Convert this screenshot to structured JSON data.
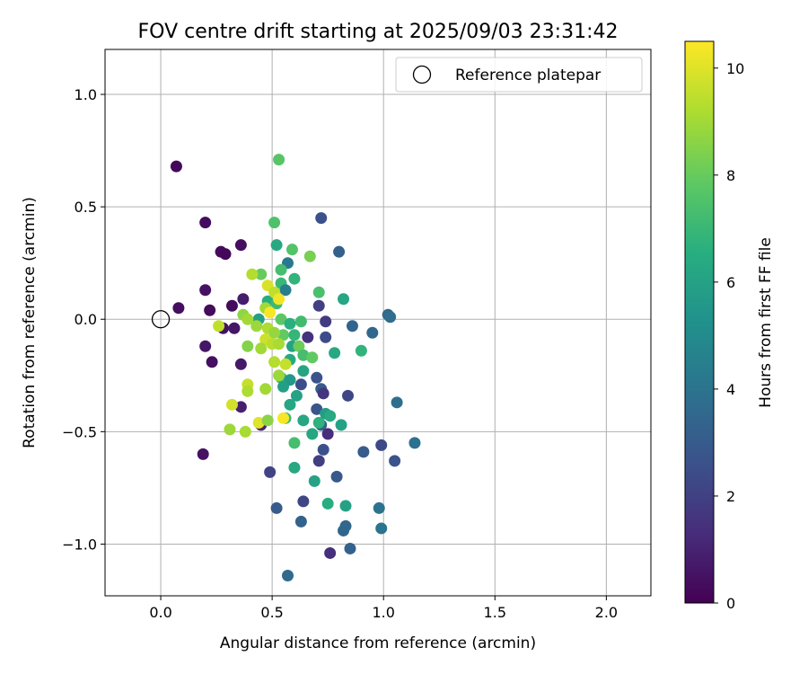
{
  "chart_data": {
    "type": "scatter",
    "title": "FOV centre drift starting at 2025/09/03 23:31:42",
    "xlabel": "Angular distance from reference (arcmin)",
    "ylabel": "Rotation from reference (arcmin)",
    "xlim": [
      -0.25,
      2.2
    ],
    "ylim": [
      -1.23,
      1.2
    ],
    "xticks": [
      0.0,
      0.5,
      1.0,
      1.5,
      2.0
    ],
    "xtick_labels": [
      "0.0",
      "0.5",
      "1.0",
      "1.5",
      "2.0"
    ],
    "yticks": [
      -1.0,
      -0.5,
      0.0,
      0.5,
      1.0
    ],
    "ytick_labels": [
      "−1.0",
      "−0.5",
      "0.0",
      "0.5",
      "1.0"
    ],
    "grid": true,
    "legend": {
      "location": "top-right",
      "entries": [
        "Reference platepar"
      ]
    },
    "reference_point": {
      "x": 0.0,
      "y": 0.0
    },
    "colorbar": {
      "label": "Hours from first FF file",
      "min": 0,
      "max": 10.5,
      "ticks": [
        0,
        2,
        4,
        6,
        8,
        10
      ],
      "tick_labels": [
        "0",
        "2",
        "4",
        "6",
        "8",
        "10"
      ],
      "colormap": "viridis"
    },
    "points": [
      {
        "x": 0.07,
        "y": 0.68,
        "h": 0.2
      },
      {
        "x": 0.2,
        "y": 0.43,
        "h": 0.3
      },
      {
        "x": 0.08,
        "y": 0.05,
        "h": 0.4
      },
      {
        "x": 0.2,
        "y": 0.13,
        "h": 0.5
      },
      {
        "x": 0.22,
        "y": 0.04,
        "h": 0.3
      },
      {
        "x": 0.2,
        "y": -0.12,
        "h": 0.6
      },
      {
        "x": 0.23,
        "y": -0.19,
        "h": 0.4
      },
      {
        "x": 0.19,
        "y": -0.6,
        "h": 0.5
      },
      {
        "x": 0.27,
        "y": 0.3,
        "h": 0.3
      },
      {
        "x": 0.29,
        "y": 0.29,
        "h": 0.2
      },
      {
        "x": 0.36,
        "y": 0.33,
        "h": 0.4
      },
      {
        "x": 0.37,
        "y": 0.09,
        "h": 0.8
      },
      {
        "x": 0.32,
        "y": 0.06,
        "h": 0.3
      },
      {
        "x": 0.28,
        "y": -0.04,
        "h": 0.5
      },
      {
        "x": 0.33,
        "y": -0.04,
        "h": 0.6
      },
      {
        "x": 0.36,
        "y": -0.2,
        "h": 0.7
      },
      {
        "x": 0.36,
        "y": -0.39,
        "h": 0.9
      },
      {
        "x": 0.45,
        "y": -0.47,
        "h": 1.0
      },
      {
        "x": 0.72,
        "y": 0.45,
        "h": 2.6
      },
      {
        "x": 0.8,
        "y": 0.3,
        "h": 3.2
      },
      {
        "x": 0.71,
        "y": 0.06,
        "h": 2.0
      },
      {
        "x": 0.74,
        "y": -0.01,
        "h": 1.8
      },
      {
        "x": 0.74,
        "y": -0.08,
        "h": 2.4
      },
      {
        "x": 0.66,
        "y": -0.08,
        "h": 1.5
      },
      {
        "x": 0.86,
        "y": -0.03,
        "h": 3.4
      },
      {
        "x": 0.95,
        "y": -0.06,
        "h": 3.5
      },
      {
        "x": 1.02,
        "y": 0.02,
        "h": 3.6
      },
      {
        "x": 1.03,
        "y": 0.01,
        "h": 3.7
      },
      {
        "x": 0.63,
        "y": -0.29,
        "h": 2.5
      },
      {
        "x": 0.7,
        "y": -0.26,
        "h": 2.7
      },
      {
        "x": 0.72,
        "y": -0.31,
        "h": 3.0
      },
      {
        "x": 0.73,
        "y": -0.33,
        "h": 1.6
      },
      {
        "x": 0.84,
        "y": -0.34,
        "h": 2.2
      },
      {
        "x": 0.7,
        "y": -0.4,
        "h": 2.8
      },
      {
        "x": 0.72,
        "y": -0.47,
        "h": 3.1
      },
      {
        "x": 0.75,
        "y": -0.51,
        "h": 1.3
      },
      {
        "x": 0.73,
        "y": -0.58,
        "h": 2.6
      },
      {
        "x": 0.71,
        "y": -0.63,
        "h": 1.9
      },
      {
        "x": 0.79,
        "y": -0.7,
        "h": 2.9
      },
      {
        "x": 0.91,
        "y": -0.59,
        "h": 3.0
      },
      {
        "x": 0.99,
        "y": -0.56,
        "h": 2.3
      },
      {
        "x": 1.05,
        "y": -0.63,
        "h": 2.7
      },
      {
        "x": 1.06,
        "y": -0.37,
        "h": 3.8
      },
      {
        "x": 1.14,
        "y": -0.55,
        "h": 3.9
      },
      {
        "x": 0.49,
        "y": -0.68,
        "h": 2.1
      },
      {
        "x": 0.52,
        "y": -0.84,
        "h": 3.0
      },
      {
        "x": 0.64,
        "y": -0.81,
        "h": 2.2
      },
      {
        "x": 0.63,
        "y": -0.9,
        "h": 3.3
      },
      {
        "x": 0.82,
        "y": -0.94,
        "h": 3.4
      },
      {
        "x": 0.83,
        "y": -0.92,
        "h": 3.5
      },
      {
        "x": 0.76,
        "y": -1.04,
        "h": 1.4
      },
      {
        "x": 0.85,
        "y": -1.02,
        "h": 3.3
      },
      {
        "x": 0.57,
        "y": -1.14,
        "h": 3.6
      },
      {
        "x": 0.98,
        "y": -0.84,
        "h": 4.0
      },
      {
        "x": 0.99,
        "y": -0.93,
        "h": 4.0
      },
      {
        "x": 0.53,
        "y": 0.71,
        "h": 7.7
      },
      {
        "x": 0.51,
        "y": 0.43,
        "h": 7.5
      },
      {
        "x": 0.52,
        "y": 0.33,
        "h": 6.3
      },
      {
        "x": 0.59,
        "y": 0.31,
        "h": 7.6
      },
      {
        "x": 0.67,
        "y": 0.28,
        "h": 8.3
      },
      {
        "x": 0.57,
        "y": 0.25,
        "h": 4.2
      },
      {
        "x": 0.54,
        "y": 0.22,
        "h": 7.3
      },
      {
        "x": 0.45,
        "y": 0.2,
        "h": 8.0
      },
      {
        "x": 0.6,
        "y": 0.18,
        "h": 6.8
      },
      {
        "x": 0.54,
        "y": 0.16,
        "h": 7.0
      },
      {
        "x": 0.56,
        "y": 0.13,
        "h": 4.5
      },
      {
        "x": 0.71,
        "y": 0.12,
        "h": 7.4
      },
      {
        "x": 0.82,
        "y": 0.09,
        "h": 6.2
      },
      {
        "x": 0.48,
        "y": 0.08,
        "h": 6.5
      },
      {
        "x": 0.52,
        "y": 0.07,
        "h": 7.1
      },
      {
        "x": 0.44,
        "y": 0.0,
        "h": 5.9
      },
      {
        "x": 0.54,
        "y": 0.0,
        "h": 7.8
      },
      {
        "x": 0.58,
        "y": -0.02,
        "h": 6.6
      },
      {
        "x": 0.63,
        "y": -0.01,
        "h": 7.2
      },
      {
        "x": 0.55,
        "y": -0.07,
        "h": 7.9
      },
      {
        "x": 0.6,
        "y": -0.07,
        "h": 6.9
      },
      {
        "x": 0.59,
        "y": -0.12,
        "h": 6.0
      },
      {
        "x": 0.62,
        "y": -0.12,
        "h": 8.1
      },
      {
        "x": 0.58,
        "y": -0.18,
        "h": 6.4
      },
      {
        "x": 0.64,
        "y": -0.16,
        "h": 7.3
      },
      {
        "x": 0.68,
        "y": -0.17,
        "h": 7.9
      },
      {
        "x": 0.78,
        "y": -0.15,
        "h": 6.3
      },
      {
        "x": 0.9,
        "y": -0.14,
        "h": 6.8
      },
      {
        "x": 0.64,
        "y": -0.23,
        "h": 6.1
      },
      {
        "x": 0.54,
        "y": -0.26,
        "h": 7.0
      },
      {
        "x": 0.58,
        "y": -0.27,
        "h": 5.6
      },
      {
        "x": 0.55,
        "y": -0.3,
        "h": 5.9
      },
      {
        "x": 0.61,
        "y": -0.34,
        "h": 6.0
      },
      {
        "x": 0.58,
        "y": -0.38,
        "h": 6.2
      },
      {
        "x": 0.56,
        "y": -0.44,
        "h": 7.1
      },
      {
        "x": 0.64,
        "y": -0.45,
        "h": 6.2
      },
      {
        "x": 0.71,
        "y": -0.46,
        "h": 6.7
      },
      {
        "x": 0.74,
        "y": -0.42,
        "h": 5.8
      },
      {
        "x": 0.76,
        "y": -0.43,
        "h": 6.4
      },
      {
        "x": 0.81,
        "y": -0.47,
        "h": 6.0
      },
      {
        "x": 0.68,
        "y": -0.51,
        "h": 6.2
      },
      {
        "x": 0.6,
        "y": -0.55,
        "h": 7.3
      },
      {
        "x": 0.6,
        "y": -0.66,
        "h": 6.3
      },
      {
        "x": 0.69,
        "y": -0.72,
        "h": 6.0
      },
      {
        "x": 0.75,
        "y": -0.82,
        "h": 6.5
      },
      {
        "x": 0.83,
        "y": -0.83,
        "h": 6.0
      },
      {
        "x": 0.41,
        "y": 0.2,
        "h": 9.3
      },
      {
        "x": 0.48,
        "y": 0.15,
        "h": 9.9
      },
      {
        "x": 0.51,
        "y": 0.12,
        "h": 9.5
      },
      {
        "x": 0.53,
        "y": 0.09,
        "h": 10.3
      },
      {
        "x": 0.47,
        "y": 0.05,
        "h": 9.0
      },
      {
        "x": 0.49,
        "y": 0.03,
        "h": 10.4
      },
      {
        "x": 0.37,
        "y": 0.02,
        "h": 8.7
      },
      {
        "x": 0.39,
        "y": 0.0,
        "h": 9.0
      },
      {
        "x": 0.43,
        "y": -0.03,
        "h": 8.9
      },
      {
        "x": 0.48,
        "y": -0.04,
        "h": 9.2
      },
      {
        "x": 0.51,
        "y": -0.06,
        "h": 8.8
      },
      {
        "x": 0.47,
        "y": -0.09,
        "h": 9.7
      },
      {
        "x": 0.5,
        "y": -0.11,
        "h": 9.4
      },
      {
        "x": 0.53,
        "y": -0.11,
        "h": 9.1
      },
      {
        "x": 0.39,
        "y": -0.12,
        "h": 8.5
      },
      {
        "x": 0.45,
        "y": -0.13,
        "h": 9.0
      },
      {
        "x": 0.51,
        "y": -0.19,
        "h": 9.3
      },
      {
        "x": 0.56,
        "y": -0.2,
        "h": 9.6
      },
      {
        "x": 0.53,
        "y": -0.25,
        "h": 8.9
      },
      {
        "x": 0.39,
        "y": -0.29,
        "h": 9.6
      },
      {
        "x": 0.39,
        "y": -0.32,
        "h": 9.2
      },
      {
        "x": 0.47,
        "y": -0.31,
        "h": 9.0
      },
      {
        "x": 0.32,
        "y": -0.38,
        "h": 9.8
      },
      {
        "x": 0.26,
        "y": -0.03,
        "h": 9.5
      },
      {
        "x": 0.44,
        "y": -0.46,
        "h": 10.0
      },
      {
        "x": 0.48,
        "y": -0.45,
        "h": 8.6
      },
      {
        "x": 0.55,
        "y": -0.44,
        "h": 10.4
      },
      {
        "x": 0.31,
        "y": -0.49,
        "h": 8.9
      },
      {
        "x": 0.38,
        "y": -0.5,
        "h": 9.1
      }
    ]
  }
}
